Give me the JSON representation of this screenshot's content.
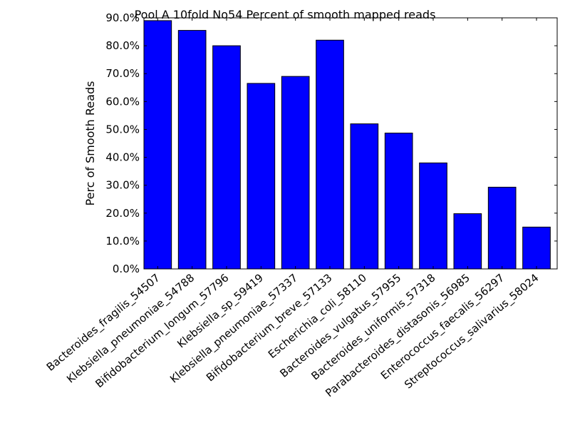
{
  "chart_data": {
    "type": "bar",
    "title": "Pool A 10fold No54 Percent of smooth mapped reads",
    "xlabel": "",
    "ylabel": "Perc of Smooth Reads",
    "ylim": [
      0,
      0.9
    ],
    "yticks": [
      0.0,
      0.1,
      0.2,
      0.3,
      0.4,
      0.5,
      0.6,
      0.7,
      0.8,
      0.9
    ],
    "ytick_labels": [
      "0.0%",
      "10.0%",
      "20.0%",
      "30.0%",
      "40.0%",
      "50.0%",
      "60.0%",
      "70.0%",
      "80.0%",
      "90.0%"
    ],
    "categories": [
      "Bacteroides_fragilis_54507",
      "Klebsiella_pneumoniae_54788",
      "Bifidobacterium_longum_57796",
      "Klebsiella_sp_59419",
      "Klebsiella_pneumoniae_57337",
      "Bifidobacterium_breve_57133",
      "Escherichia_coli_58110",
      "Bacteroides_vulgatus_57955",
      "Bacteroides_uniformis_57318",
      "Parabacteroides_distasonis_56985",
      "Enterococcus_faecalis_56297",
      "Streptococcus_salivarius_58024"
    ],
    "values": [
      0.89,
      0.855,
      0.8,
      0.665,
      0.69,
      0.82,
      0.52,
      0.487,
      0.38,
      0.198,
      0.293,
      0.15
    ],
    "bar_color": "#0000ff",
    "grid": false,
    "legend": "none"
  }
}
